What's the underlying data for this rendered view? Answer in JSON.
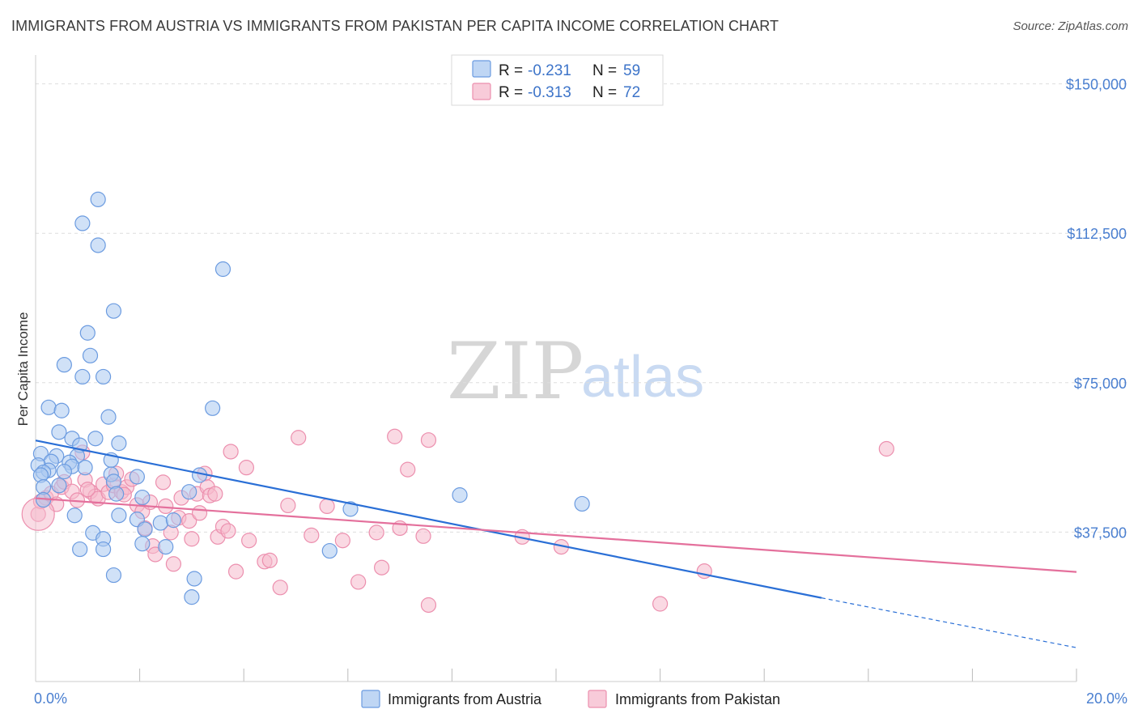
{
  "title": "IMMIGRANTS FROM AUSTRIA VS IMMIGRANTS FROM PAKISTAN PER CAPITA INCOME CORRELATION CHART",
  "source": "Source: ZipAtlas.com",
  "watermark": {
    "part1": "ZIP",
    "part2": "atlas"
  },
  "colors": {
    "austria_fill": "#a9c8f0",
    "austria_stroke": "#6b9be0",
    "austria_line": "#2a6fd6",
    "pakistan_fill": "#f5b9cc",
    "pakistan_stroke": "#ec8fae",
    "pakistan_line": "#e4709c",
    "grid": "#dddddd",
    "axis_text": "#4a7fd0"
  },
  "legend": {
    "rows": [
      {
        "r_label": "R =",
        "r_value": "-0.231",
        "n_label": "N =",
        "n_value": "59"
      },
      {
        "r_label": "R =",
        "r_value": "-0.313",
        "n_label": "N =",
        "n_value": "72"
      }
    ]
  },
  "chart_data": {
    "type": "scatter",
    "title": "IMMIGRANTS FROM AUSTRIA VS IMMIGRANTS FROM PAKISTAN PER CAPITA INCOME CORRELATION CHART",
    "xlabel": "",
    "ylabel": "Per Capita Income",
    "xlim": [
      0,
      20
    ],
    "ylim": [
      0,
      155000
    ],
    "x_tick_labels": [
      "0.0%",
      "20.0%"
    ],
    "y_ticks": [
      37500,
      75000,
      112500,
      150000
    ],
    "y_tick_labels": [
      "$37,500",
      "$75,000",
      "$112,500",
      "$150,000"
    ],
    "grid": true,
    "legend_position": "top-center",
    "series": [
      {
        "name": "Immigrants from Austria",
        "r": -0.231,
        "n": 59,
        "trend": {
          "x0": 0,
          "y0": 60500,
          "x1": 15.1,
          "y1": 21000,
          "dash_to_x": 20.0,
          "dash_to_y": 8500
        },
        "points": [
          [
            1.2,
            121000
          ],
          [
            0.9,
            115000
          ],
          [
            1.2,
            109500
          ],
          [
            3.6,
            103500
          ],
          [
            1.5,
            93000
          ],
          [
            1.0,
            87500
          ],
          [
            1.05,
            81800
          ],
          [
            0.55,
            79500
          ],
          [
            0.9,
            76500
          ],
          [
            1.3,
            76500
          ],
          [
            0.25,
            68800
          ],
          [
            0.5,
            68000
          ],
          [
            3.4,
            68600
          ],
          [
            1.4,
            66400
          ],
          [
            0.45,
            62600
          ],
          [
            0.7,
            61000
          ],
          [
            1.15,
            61000
          ],
          [
            1.6,
            59800
          ],
          [
            0.85,
            59300
          ],
          [
            0.1,
            57200
          ],
          [
            0.4,
            56600
          ],
          [
            0.8,
            56600
          ],
          [
            0.3,
            55200
          ],
          [
            1.45,
            55600
          ],
          [
            0.65,
            55000
          ],
          [
            0.05,
            54300
          ],
          [
            0.7,
            54000
          ],
          [
            0.95,
            53700
          ],
          [
            0.25,
            53000
          ],
          [
            0.15,
            52500
          ],
          [
            0.1,
            51800
          ],
          [
            0.55,
            52700
          ],
          [
            1.45,
            52000
          ],
          [
            3.15,
            51800
          ],
          [
            1.95,
            51400
          ],
          [
            1.5,
            50200
          ],
          [
            0.45,
            49200
          ],
          [
            0.15,
            48800
          ],
          [
            2.95,
            47600
          ],
          [
            1.55,
            47100
          ],
          [
            8.15,
            46800
          ],
          [
            2.05,
            46200
          ],
          [
            10.5,
            44600
          ],
          [
            6.05,
            43300
          ],
          [
            0.75,
            41700
          ],
          [
            1.6,
            41700
          ],
          [
            1.95,
            40700
          ],
          [
            2.4,
            39800
          ],
          [
            2.65,
            40500
          ],
          [
            0.15,
            45600
          ],
          [
            2.1,
            38200
          ],
          [
            1.1,
            37300
          ],
          [
            1.3,
            35800
          ],
          [
            2.05,
            34600
          ],
          [
            2.5,
            33800
          ],
          [
            0.85,
            33200
          ],
          [
            1.3,
            33200
          ],
          [
            5.65,
            32800
          ],
          [
            1.5,
            26700
          ]
        ],
        "extra_points": [
          [
            3.05,
            25800
          ],
          [
            3.0,
            21200
          ]
        ]
      },
      {
        "name": "Immigrants from Pakistan",
        "r": -0.313,
        "n": 72,
        "trend": {
          "x0": 0,
          "y0": 46000,
          "x1": 20.0,
          "y1": 27500
        },
        "points": [
          [
            0.05,
            42000
          ],
          [
            0.1,
            45200
          ],
          [
            0.2,
            46100
          ],
          [
            0.3,
            47200
          ],
          [
            0.4,
            44500
          ],
          [
            0.5,
            48800
          ],
          [
            0.55,
            50100
          ],
          [
            0.7,
            47700
          ],
          [
            0.8,
            45500
          ],
          [
            0.9,
            57500
          ],
          [
            0.95,
            50600
          ],
          [
            1.05,
            47700
          ],
          [
            1.15,
            46500
          ],
          [
            1.2,
            45900
          ],
          [
            1.3,
            49500
          ],
          [
            1.4,
            47500
          ],
          [
            1.5,
            49200
          ],
          [
            1.55,
            52200
          ],
          [
            1.65,
            47600
          ],
          [
            1.75,
            48800
          ],
          [
            1.85,
            50800
          ],
          [
            1.95,
            44300
          ],
          [
            2.05,
            42700
          ],
          [
            2.1,
            38500
          ],
          [
            2.2,
            45000
          ],
          [
            2.25,
            34000
          ],
          [
            2.45,
            50000
          ],
          [
            2.5,
            44000
          ],
          [
            2.6,
            37400
          ],
          [
            2.65,
            29500
          ],
          [
            2.75,
            41100
          ],
          [
            2.8,
            46100
          ],
          [
            2.95,
            40300
          ],
          [
            3.0,
            35800
          ],
          [
            3.1,
            47100
          ],
          [
            3.15,
            42300
          ],
          [
            3.25,
            52200
          ],
          [
            3.3,
            48800
          ],
          [
            3.35,
            46700
          ],
          [
            3.45,
            47100
          ],
          [
            3.5,
            36300
          ],
          [
            3.6,
            38900
          ],
          [
            3.7,
            37800
          ],
          [
            3.75,
            57700
          ],
          [
            3.85,
            27600
          ],
          [
            4.05,
            53700
          ],
          [
            4.1,
            35400
          ],
          [
            4.4,
            30100
          ],
          [
            4.5,
            30400
          ],
          [
            4.7,
            23600
          ],
          [
            4.85,
            44200
          ],
          [
            5.05,
            61200
          ],
          [
            5.3,
            36700
          ],
          [
            5.6,
            44000
          ],
          [
            5.9,
            35400
          ],
          [
            6.2,
            25000
          ],
          [
            6.55,
            37400
          ],
          [
            6.65,
            28600
          ],
          [
            6.9,
            61500
          ],
          [
            7.0,
            38500
          ],
          [
            7.15,
            53200
          ],
          [
            7.45,
            36500
          ],
          [
            7.55,
            60600
          ],
          [
            7.55,
            19200
          ],
          [
            9.35,
            36300
          ],
          [
            10.1,
            33800
          ],
          [
            12.0,
            19500
          ],
          [
            12.85,
            27700
          ],
          [
            16.35,
            58400
          ],
          [
            2.3,
            31900
          ],
          [
            1.0,
            48200
          ],
          [
            1.7,
            46900
          ]
        ]
      }
    ]
  },
  "bottom_legend": {
    "items": [
      "Immigrants from Austria",
      "Immigrants from Pakistan"
    ]
  }
}
